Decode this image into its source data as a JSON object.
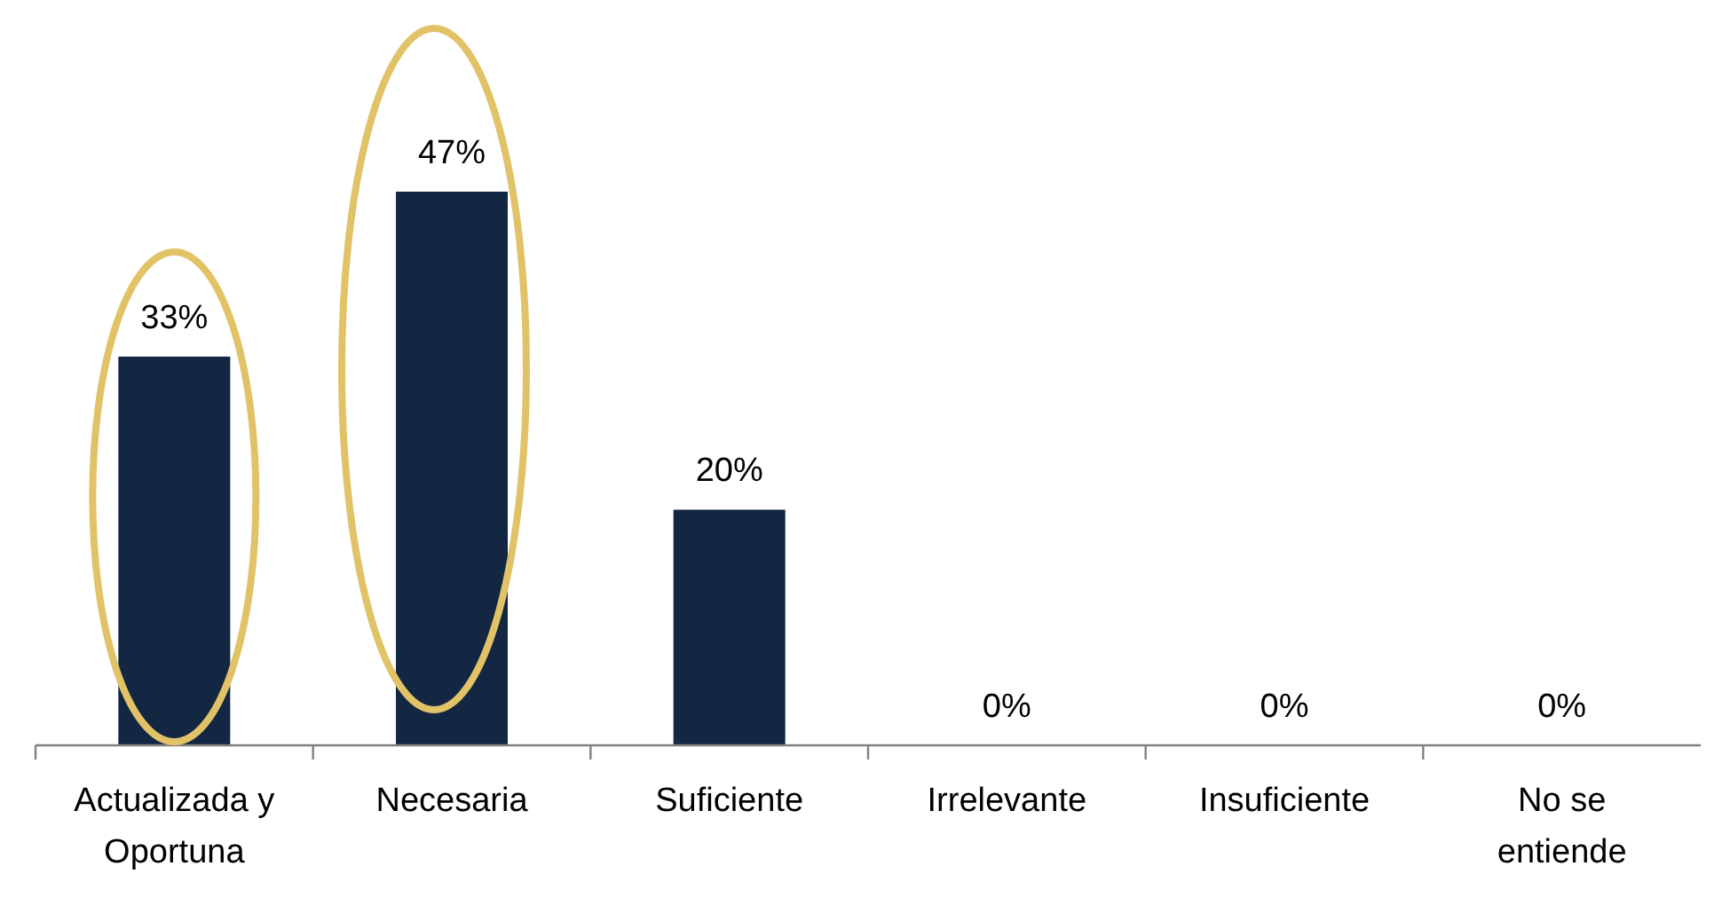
{
  "chart_data": {
    "type": "bar",
    "categories": [
      "Actualizada y Oportuna",
      "Necesaria",
      "Suficiente",
      "Irrelevante",
      "Insuficiente",
      "No se entiende"
    ],
    "values": [
      33,
      47,
      20,
      0,
      0,
      0
    ],
    "value_labels": [
      "33%",
      "47%",
      "20%",
      "0%",
      "0%",
      "0%"
    ],
    "color": "#132743"
  }
}
